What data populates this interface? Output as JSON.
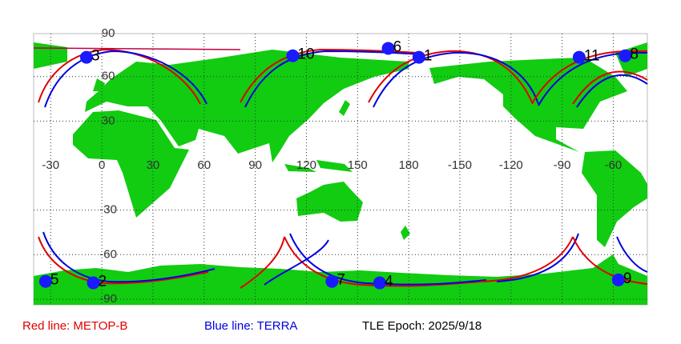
{
  "map": {
    "lon_ticks": [
      -30,
      0,
      30,
      60,
      90,
      120,
      150,
      180,
      -150,
      -120,
      -90,
      -60
    ],
    "lat_ticks": [
      90,
      60,
      30,
      -30,
      -60,
      -90
    ],
    "satellites": [
      {
        "label": "3",
        "lon": -9,
        "lat": 73
      },
      {
        "label": "10",
        "lon": 112,
        "lat": 74
      },
      {
        "label": "6",
        "lon": 168,
        "lat": 79
      },
      {
        "label": "1",
        "lon": -174,
        "lat": 73
      },
      {
        "label": "11",
        "lon": -80,
        "lat": 73
      },
      {
        "label": "8",
        "lon": -53,
        "lat": 74
      },
      {
        "label": "5",
        "lon": -33,
        "lat": -78
      },
      {
        "label": "2",
        "lon": -5,
        "lat": -79
      },
      {
        "label": "7",
        "lon": 135,
        "lat": -78
      },
      {
        "label": "4",
        "lon": 163,
        "lat": -79
      },
      {
        "label": "9",
        "lon": -57,
        "lat": -77
      }
    ],
    "legend": {
      "red": "Red line: METOP-B",
      "blue": "Blue line: TERRA",
      "epoch": "TLE Epoch: 2025/9/18"
    }
  }
}
